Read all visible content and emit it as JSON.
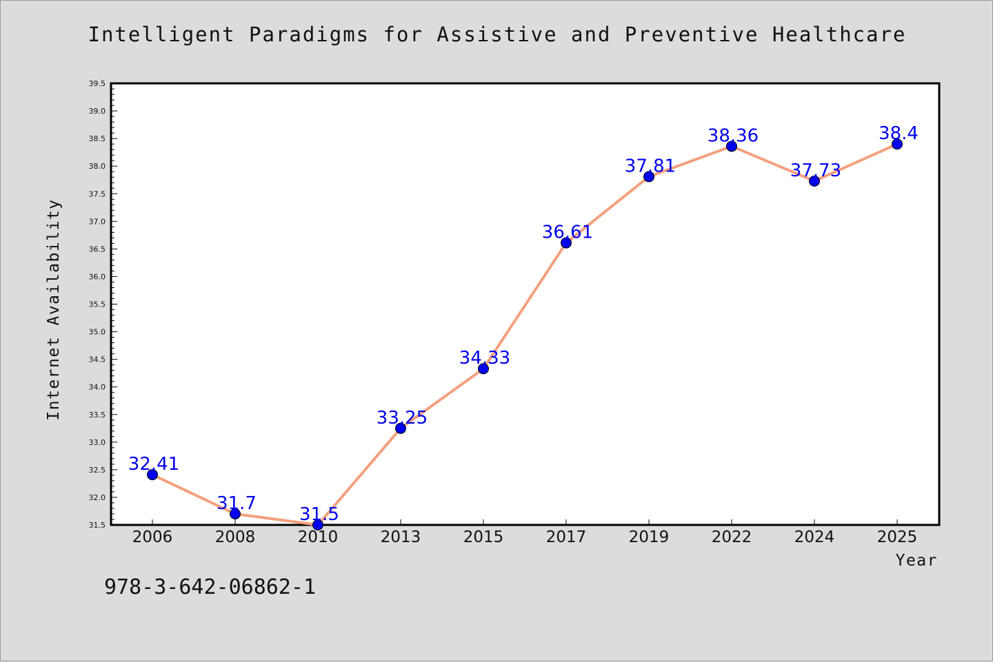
{
  "title": "Intelligent Paradigms for Assistive and Preventive Healthcare",
  "footer_text": "978-3-642-06862-1",
  "colors": {
    "background": "#dcdcdc",
    "plot_area": "#ffffff",
    "line": "#f4a07e",
    "marker": "#0000ee",
    "data_label": "#0000ee"
  },
  "chart_data": {
    "type": "line",
    "title": "Intelligent Paradigms for Assistive and Preventive Healthcare",
    "xlabel": "Year",
    "ylabel": "Internet Availability",
    "categories": [
      "2006",
      "2008",
      "2010",
      "2013",
      "2015",
      "2017",
      "2019",
      "2022",
      "2024",
      "2025"
    ],
    "series": [
      {
        "values": [
          32.41,
          31.7,
          31.5,
          33.25,
          34.33,
          36.61,
          37.81,
          38.36,
          37.73,
          38.4
        ],
        "data_labels": [
          "32.41",
          "31.7",
          "31.5",
          "33.25",
          "34.33",
          "36.61",
          "37.81",
          "38.36",
          "37.73",
          "38.4"
        ]
      }
    ],
    "ylim": [
      31.5,
      39.5
    ],
    "yticks": [
      "31.5",
      "32.0",
      "32.5",
      "33.0",
      "33.5",
      "34.0",
      "34.5",
      "35.0",
      "35.5",
      "36.0",
      "36.5",
      "37.0",
      "37.5",
      "38.0",
      "38.5",
      "39.0",
      "39.5"
    ],
    "grid": false,
    "legend": "none"
  }
}
